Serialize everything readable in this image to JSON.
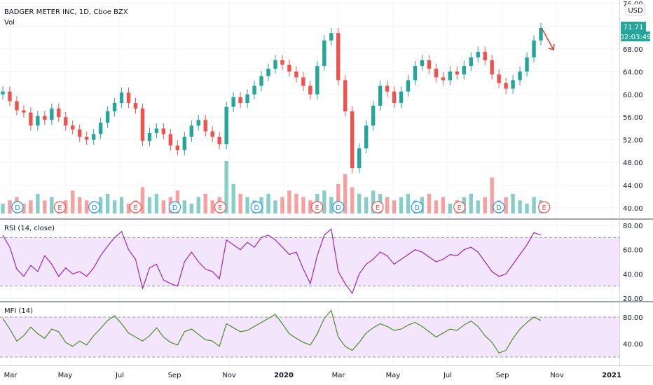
{
  "header": {
    "symbol_line": "BADGER METER INC, 1D, Cboe BZX",
    "vol_label": "Vol",
    "currency_button": "USD"
  },
  "price_badge": {
    "last": "71.71",
    "countdown": "02:03:49",
    "color": "#26a69a"
  },
  "colors": {
    "up": "#26a69a",
    "down": "#ef5350",
    "rsi": "#9c27b0",
    "mfi": "#4c8b2a",
    "band_fill": "#f3e5fb",
    "arrow": "#e53935"
  },
  "time_axis": [
    "Mar",
    "May",
    "Jul",
    "Sep",
    "Nov",
    "2020",
    "Mar",
    "May",
    "Jul",
    "Sep",
    "Nov",
    "2021"
  ],
  "events": [
    {
      "t": 0.015,
      "k": "D"
    },
    {
      "t": 0.085,
      "k": "E"
    },
    {
      "t": 0.142,
      "k": "D"
    },
    {
      "t": 0.21,
      "k": "E"
    },
    {
      "t": 0.275,
      "k": "D"
    },
    {
      "t": 0.35,
      "k": "E"
    },
    {
      "t": 0.41,
      "k": "D"
    },
    {
      "t": 0.51,
      "k": "E"
    },
    {
      "t": 0.545,
      "k": "D"
    },
    {
      "t": 0.61,
      "k": "E"
    },
    {
      "t": 0.675,
      "k": "D"
    },
    {
      "t": 0.745,
      "k": "E"
    },
    {
      "t": 0.81,
      "k": "D"
    },
    {
      "t": 0.885,
      "k": "E"
    }
  ],
  "chart_data": [
    {
      "type": "line",
      "title": "BADGER METER INC, 1D, Cboe BZX",
      "y_ticks": [
        "76.00",
        "72.00",
        "68.00",
        "64.00",
        "60.00",
        "56.00",
        "52.00",
        "48.00",
        "44.00",
        "40.00"
      ],
      "ylim": [
        38.5,
        76.5
      ],
      "series": [
        {
          "values": [
            60.5,
            58.8,
            57.2,
            56.8,
            54.5,
            56.2,
            55.5,
            57.5,
            56.0,
            54.5,
            53.8,
            52.5,
            52.0,
            53.0,
            55.0,
            57.0,
            58.5,
            60.3,
            58.5,
            57.5,
            51.8,
            53.2,
            54.0,
            53.0,
            51.0,
            50.2,
            52.5,
            54.5,
            55.5,
            53.5,
            52.5,
            51.2,
            57.8,
            59.5,
            58.5,
            60.0,
            61.5,
            63.2,
            64.5,
            66.0,
            65.2,
            64.0,
            63.0,
            61.5,
            60.0,
            65.0,
            69.5,
            70.8,
            62.5,
            57.0,
            47.0,
            50.5,
            54.5,
            58.0,
            61.5,
            60.5,
            58.5,
            60.5,
            62.5,
            65.0,
            66.0,
            64.5,
            63.0,
            62.5,
            64.0,
            63.5,
            65.0,
            66.5,
            67.5,
            66.0,
            63.5,
            62.0,
            61.0,
            62.5,
            64.0,
            66.5,
            69.5,
            71.7
          ]
        }
      ]
    },
    {
      "type": "bar",
      "title": "Vol",
      "values": [
        3,
        4,
        5,
        3,
        4,
        6,
        4,
        5,
        3,
        4,
        7,
        5,
        4,
        3,
        5,
        6,
        4,
        5,
        3,
        4,
        8,
        5,
        6,
        4,
        5,
        7,
        4,
        3,
        5,
        6,
        4,
        5,
        16,
        9,
        6,
        5,
        4,
        5,
        6,
        4,
        5,
        7,
        6,
        5,
        4,
        6,
        7,
        5,
        9,
        12,
        8,
        6,
        5,
        7,
        6,
        5,
        4,
        5,
        6,
        4,
        5,
        6,
        4,
        5,
        3,
        4,
        5,
        6,
        4,
        5,
        11,
        4,
        5,
        6,
        4,
        3,
        5,
        4
      ]
    },
    {
      "type": "line",
      "title": "RSI (14, close)",
      "y_ticks": [
        "80.00",
        "60.00",
        "40.00",
        "20.00"
      ],
      "ylim": [
        18,
        82
      ],
      "bands": [
        30,
        70
      ],
      "series": [
        {
          "values": [
            72,
            62,
            44,
            38,
            47,
            42,
            55,
            48,
            38,
            45,
            40,
            42,
            38,
            45,
            55,
            63,
            70,
            75,
            60,
            52,
            28,
            45,
            48,
            35,
            32,
            30,
            50,
            58,
            50,
            44,
            42,
            36,
            68,
            64,
            60,
            66,
            62,
            70,
            72,
            68,
            62,
            56,
            58,
            44,
            32,
            55,
            72,
            77,
            42,
            32,
            24,
            40,
            48,
            52,
            58,
            55,
            48,
            52,
            56,
            60,
            58,
            54,
            50,
            52,
            56,
            55,
            60,
            62,
            58,
            50,
            42,
            38,
            40,
            48,
            56,
            64,
            74,
            72
          ]
        }
      ]
    },
    {
      "type": "line",
      "title": "MFI (14)",
      "y_ticks": [
        "80.00",
        "40.00"
      ],
      "ylim": [
        18,
        92
      ],
      "bands": [
        20,
        80
      ],
      "series": [
        {
          "values": [
            78,
            62,
            44,
            52,
            65,
            55,
            48,
            62,
            58,
            42,
            36,
            44,
            38,
            52,
            63,
            75,
            82,
            70,
            56,
            50,
            44,
            52,
            64,
            50,
            42,
            38,
            58,
            62,
            54,
            46,
            44,
            36,
            70,
            64,
            58,
            60,
            66,
            72,
            78,
            84,
            70,
            55,
            48,
            42,
            38,
            55,
            78,
            90,
            50,
            36,
            30,
            42,
            56,
            64,
            70,
            66,
            60,
            62,
            68,
            72,
            66,
            58,
            50,
            56,
            62,
            60,
            68,
            74,
            66,
            52,
            42,
            26,
            30,
            48,
            62,
            72,
            80,
            75
          ]
        }
      ]
    }
  ]
}
